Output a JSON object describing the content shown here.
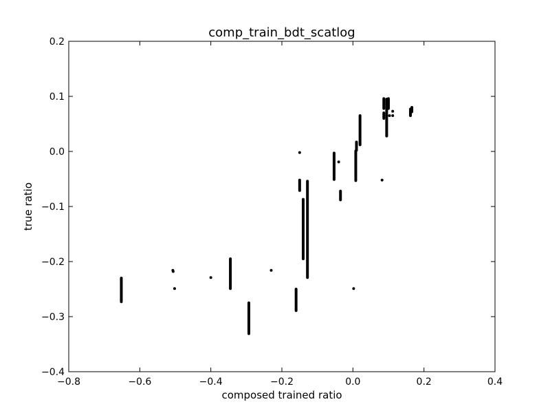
{
  "chart_data": {
    "type": "scatter",
    "title": "comp_train_bdt_scatlog",
    "xlabel": "composed trained ratio",
    "ylabel": "true ratio",
    "xlim": [
      -0.8,
      0.4
    ],
    "ylim": [
      -0.4,
      0.2
    ],
    "grid": false,
    "marker_color": "#000000",
    "x_ticks": [
      -0.8,
      -0.6,
      -0.4,
      -0.2,
      0.0,
      0.2,
      0.4
    ],
    "x_tick_labels": [
      "−0.8",
      "−0.6",
      "−0.4",
      "−0.2",
      "0.0",
      "0.2",
      "0.4"
    ],
    "y_ticks": [
      -0.4,
      -0.3,
      -0.2,
      -0.1,
      0.0,
      0.1,
      0.2
    ],
    "y_tick_labels": [
      "−0.4",
      "−0.3",
      "−0.2",
      "−0.1",
      "0.0",
      "0.1",
      "0.2"
    ],
    "clusters": [
      {
        "x": -0.652,
        "y_min": -0.273,
        "y_max": -0.23
      },
      {
        "x": -0.345,
        "y_min": -0.249,
        "y_max": -0.195
      },
      {
        "x": -0.293,
        "y_min": -0.331,
        "y_max": -0.275
      },
      {
        "x": -0.16,
        "y_min": -0.289,
        "y_max": -0.25
      },
      {
        "x": -0.15,
        "y_min": -0.071,
        "y_max": -0.052
      },
      {
        "x": -0.14,
        "y_min": -0.195,
        "y_max": -0.087
      },
      {
        "x": -0.128,
        "y_min": -0.229,
        "y_max": -0.054
      },
      {
        "x": -0.053,
        "y_min": -0.051,
        "y_max": -0.003
      },
      {
        "x": -0.035,
        "y_min": -0.088,
        "y_max": -0.072
      },
      {
        "x": 0.008,
        "y_min": -0.053,
        "y_max": 0.001
      },
      {
        "x": 0.01,
        "y_min": 0.002,
        "y_max": 0.017
      },
      {
        "x": 0.02,
        "y_min": 0.012,
        "y_max": 0.065
      },
      {
        "x": 0.087,
        "y_min": 0.078,
        "y_max": 0.096
      },
      {
        "x": 0.087,
        "y_min": 0.06,
        "y_max": 0.07
      },
      {
        "x": 0.095,
        "y_min": 0.028,
        "y_max": 0.095
      },
      {
        "x": 0.1,
        "y_min": 0.078,
        "y_max": 0.096
      },
      {
        "x": 0.162,
        "y_min": 0.065,
        "y_max": 0.077
      },
      {
        "x": 0.166,
        "y_min": 0.072,
        "y_max": 0.08
      }
    ],
    "points": [
      {
        "x": -0.507,
        "y": -0.216
      },
      {
        "x": -0.506,
        "y": -0.218
      },
      {
        "x": -0.502,
        "y": -0.249
      },
      {
        "x": -0.4,
        "y": -0.229
      },
      {
        "x": -0.23,
        "y": -0.216
      },
      {
        "x": -0.15,
        "y": -0.002
      },
      {
        "x": -0.04,
        "y": -0.019
      },
      {
        "x": 0.002,
        "y": -0.249
      },
      {
        "x": 0.082,
        "y": -0.052
      },
      {
        "x": 0.103,
        "y": 0.065
      },
      {
        "x": 0.112,
        "y": 0.065
      },
      {
        "x": 0.112,
        "y": 0.073
      }
    ]
  }
}
